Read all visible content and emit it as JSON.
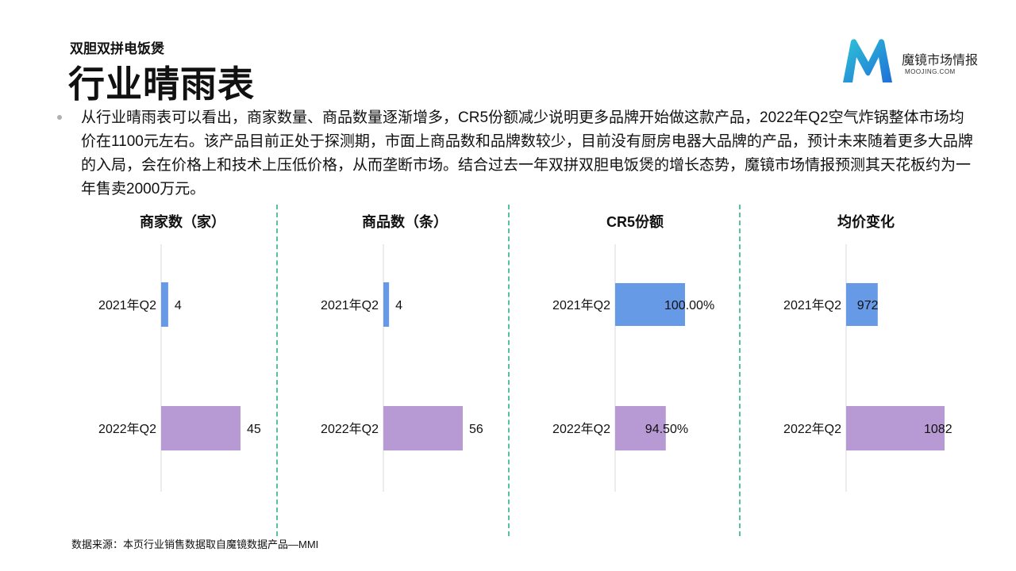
{
  "header": {
    "subtitle": "双胆双拼电饭煲",
    "title": "行业晴雨表"
  },
  "logo": {
    "name": "魔镜市场情报",
    "sub": "MOOJING.COM",
    "colors": [
      "#1f8fd8",
      "#2ec4d6"
    ]
  },
  "description": "从行业晴雨表可以看出，商家数量、商品数量逐渐增多，CR5份额减少说明更多品牌开始做这款产品，2022年Q2空气炸锅整体市场均价在1100元左右。该产品目前正处于探测期，市面上商品数和品牌数较少，目前没有厨房电器大品牌的产品，预计未来随着更多大品牌的入局，会在价格上和技术上压低价格，从而垄断市场。结合过去一年双拼双胆电饭煲的增长态势，魔镜市场情报预测其天花板约为一年售卖2000万元。",
  "source": "数据来源：本页行业销售数据取自魔镜数据产品—MMI",
  "colors": {
    "q2021": "#6699e6",
    "q2022": "#b799d3",
    "divider": "#55c39a",
    "axis": "#d9d9d9"
  },
  "chart_data": [
    {
      "type": "bar",
      "orientation": "horizontal",
      "title": "商家数（家）",
      "categories": [
        "2021年Q2",
        "2022年Q2"
      ],
      "values": [
        4,
        45
      ],
      "labels": [
        "4",
        "45"
      ],
      "label_position": "outside"
    },
    {
      "type": "bar",
      "orientation": "horizontal",
      "title": "商品数（条）",
      "categories": [
        "2021年Q2",
        "2022年Q2"
      ],
      "values": [
        4,
        56
      ],
      "labels": [
        "4",
        "56"
      ],
      "label_position": "outside"
    },
    {
      "type": "bar",
      "orientation": "horizontal",
      "title": "CR5份额",
      "categories": [
        "2021年Q2",
        "2022年Q2"
      ],
      "values": [
        100.0,
        94.5
      ],
      "labels": [
        "100.00%",
        "94.50%"
      ],
      "xlim": [
        80,
        100
      ],
      "label_position": "inside-end"
    },
    {
      "type": "bar",
      "orientation": "horizontal",
      "title": "均价变化",
      "categories": [
        "2021年Q2",
        "2022年Q2"
      ],
      "values": [
        972,
        1082
      ],
      "labels": [
        "972",
        "1082"
      ],
      "xlim": [
        920,
        1082
      ],
      "label_position": "inside-end"
    }
  ]
}
